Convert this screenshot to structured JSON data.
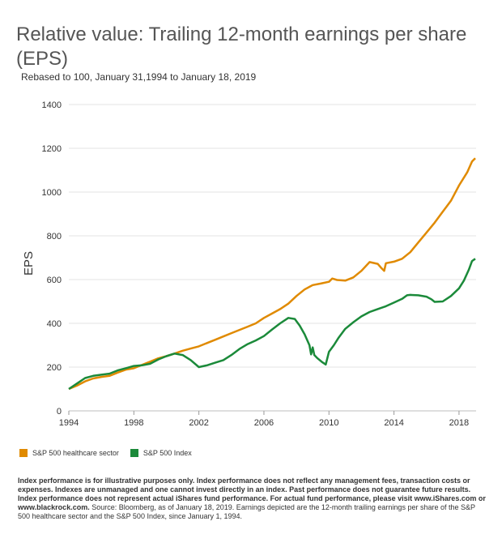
{
  "title": "Relative value: Trailing 12-month earnings per share (EPS)",
  "subtitle": "Rebased to 100, January 31,1994 to January 18, 2019",
  "notes": {
    "bold": "Index performance is for illustrative purposes only. Index performance does not reflect any management fees, transaction costs or expenses. Indexes are unmanaged and one cannot invest directly in an index. Past performance does not guarantee future results. Index performance does not represent actual iShares fund performance. For actual fund performance, please visit www.iShares.com or www.blackrock.com.",
    "regular": " Source: Bloomberg, as of January 18, 2019. Earnings depicted are the 12-month trailing earnings per share of the S&P 500 healthcare sector and the S&P 500 Index, since January 1, 1994."
  },
  "chart_data": {
    "type": "line",
    "ylabel": "EPS",
    "xlim": [
      1994,
      2019.05
    ],
    "ylim": [
      0,
      1400
    ],
    "yticks": [
      0,
      200,
      400,
      600,
      800,
      1000,
      1200,
      1400
    ],
    "xticks": [
      1994,
      1998,
      2002,
      2006,
      2010,
      2014,
      2018
    ],
    "grid": true,
    "legend_position": "bottom-left",
    "series": [
      {
        "name": "S&P 500 healthcare sector",
        "color": "#e08a00",
        "points": [
          [
            1994.0,
            100
          ],
          [
            1994.5,
            115
          ],
          [
            1995.0,
            135
          ],
          [
            1995.5,
            148
          ],
          [
            1996.0,
            155
          ],
          [
            1996.5,
            160
          ],
          [
            1997.0,
            175
          ],
          [
            1997.5,
            188
          ],
          [
            1998.0,
            195
          ],
          [
            1998.5,
            210
          ],
          [
            1999.0,
            225
          ],
          [
            1999.5,
            240
          ],
          [
            2000.0,
            250
          ],
          [
            2000.5,
            262
          ],
          [
            2001.0,
            275
          ],
          [
            2001.5,
            285
          ],
          [
            2002.0,
            295
          ],
          [
            2002.5,
            310
          ],
          [
            2003.0,
            325
          ],
          [
            2003.5,
            340
          ],
          [
            2004.0,
            355
          ],
          [
            2004.5,
            370
          ],
          [
            2005.0,
            385
          ],
          [
            2005.5,
            400
          ],
          [
            2006.0,
            425
          ],
          [
            2006.5,
            445
          ],
          [
            2007.0,
            465
          ],
          [
            2007.5,
            490
          ],
          [
            2008.0,
            525
          ],
          [
            2008.5,
            555
          ],
          [
            2009.0,
            575
          ],
          [
            2009.5,
            582
          ],
          [
            2010.0,
            590
          ],
          [
            2010.2,
            605
          ],
          [
            2010.5,
            598
          ],
          [
            2011.0,
            595
          ],
          [
            2011.5,
            610
          ],
          [
            2012.0,
            640
          ],
          [
            2012.5,
            680
          ],
          [
            2013.0,
            672
          ],
          [
            2013.2,
            655
          ],
          [
            2013.4,
            640
          ],
          [
            2013.5,
            675
          ],
          [
            2014.0,
            682
          ],
          [
            2014.5,
            695
          ],
          [
            2015.0,
            725
          ],
          [
            2015.5,
            770
          ],
          [
            2016.0,
            815
          ],
          [
            2016.5,
            860
          ],
          [
            2017.0,
            910
          ],
          [
            2017.5,
            960
          ],
          [
            2018.0,
            1030
          ],
          [
            2018.5,
            1090
          ],
          [
            2018.8,
            1140
          ],
          [
            2019.0,
            1155
          ]
        ]
      },
      {
        "name": "S&P 500 Index",
        "color": "#1b8a3a",
        "points": [
          [
            1994.0,
            100
          ],
          [
            1994.5,
            125
          ],
          [
            1995.0,
            150
          ],
          [
            1995.5,
            160
          ],
          [
            1996.0,
            165
          ],
          [
            1996.5,
            170
          ],
          [
            1997.0,
            185
          ],
          [
            1997.5,
            195
          ],
          [
            1998.0,
            205
          ],
          [
            1998.5,
            208
          ],
          [
            1999.0,
            215
          ],
          [
            1999.5,
            235
          ],
          [
            2000.0,
            250
          ],
          [
            2000.5,
            262
          ],
          [
            2001.0,
            255
          ],
          [
            2001.5,
            232
          ],
          [
            2002.0,
            200
          ],
          [
            2002.5,
            208
          ],
          [
            2003.0,
            220
          ],
          [
            2003.5,
            232
          ],
          [
            2004.0,
            255
          ],
          [
            2004.5,
            283
          ],
          [
            2005.0,
            305
          ],
          [
            2005.5,
            322
          ],
          [
            2006.0,
            342
          ],
          [
            2006.5,
            372
          ],
          [
            2007.0,
            400
          ],
          [
            2007.5,
            425
          ],
          [
            2007.9,
            420
          ],
          [
            2008.2,
            390
          ],
          [
            2008.5,
            350
          ],
          [
            2008.8,
            300
          ],
          [
            2008.9,
            258
          ],
          [
            2009.0,
            290
          ],
          [
            2009.1,
            255
          ],
          [
            2009.3,
            240
          ],
          [
            2009.6,
            222
          ],
          [
            2009.8,
            212
          ],
          [
            2010.0,
            270
          ],
          [
            2010.3,
            300
          ],
          [
            2010.6,
            335
          ],
          [
            2011.0,
            375
          ],
          [
            2011.5,
            405
          ],
          [
            2012.0,
            432
          ],
          [
            2012.5,
            452
          ],
          [
            2013.0,
            465
          ],
          [
            2013.5,
            478
          ],
          [
            2014.0,
            495
          ],
          [
            2014.5,
            512
          ],
          [
            2014.8,
            528
          ],
          [
            2015.0,
            530
          ],
          [
            2015.5,
            528
          ],
          [
            2016.0,
            522
          ],
          [
            2016.3,
            510
          ],
          [
            2016.5,
            498
          ],
          [
            2017.0,
            500
          ],
          [
            2017.5,
            525
          ],
          [
            2018.0,
            560
          ],
          [
            2018.3,
            595
          ],
          [
            2018.6,
            645
          ],
          [
            2018.8,
            685
          ],
          [
            2019.0,
            695
          ]
        ]
      }
    ]
  }
}
